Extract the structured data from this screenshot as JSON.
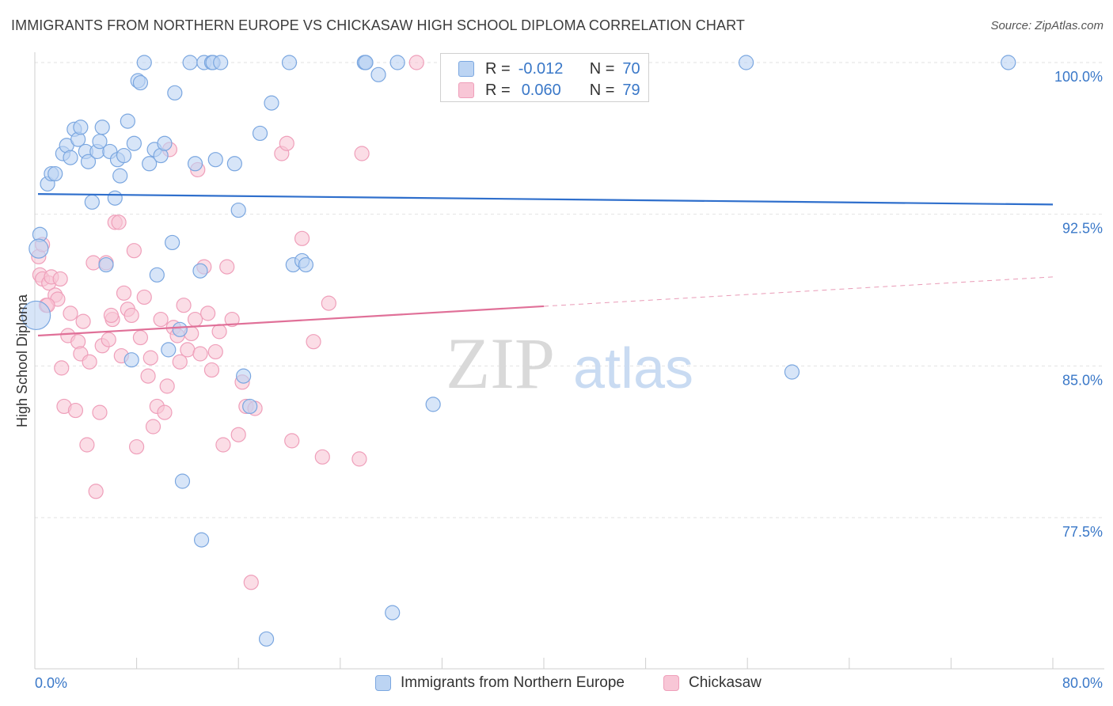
{
  "title": "IMMIGRANTS FROM NORTHERN EUROPE VS CHICKASAW HIGH SCHOOL DIPLOMA CORRELATION CHART",
  "source": "Source: ZipAtlas.com",
  "watermark": {
    "zip": "ZIP",
    "atlas": "atlas"
  },
  "stats_legend": [
    {
      "r_label": "R =",
      "r_value": "-0.012",
      "n_label": "N =",
      "n_value": "70",
      "color": "#7ba7e0"
    },
    {
      "r_label": "R =",
      "r_value": "0.060",
      "n_label": "N =",
      "n_value": "79",
      "color": "#f0a0bb"
    }
  ],
  "colors": {
    "blue_fill": "#bcd4f3",
    "blue_stroke": "#7ba7e0",
    "blue_line": "#2f6fcc",
    "pink_fill": "#f8c6d6",
    "pink_stroke": "#ef9fba",
    "pink_line": "#e07098",
    "tick_text": "#3a78c8",
    "grid": "#e2e2e2"
  },
  "chart_data": {
    "type": "scatter",
    "title": "IMMIGRANTS FROM NORTHERN EUROPE VS CHICKASAW HIGH SCHOOL DIPLOMA CORRELATION CHART",
    "xlabel": "",
    "ylabel": "High School Diploma",
    "xlim": [
      0,
      80
    ],
    "ylim": [
      71,
      101
    ],
    "x_tick_labels": [
      "0.0%",
      "80.0%"
    ],
    "y_ticks": [
      77.5,
      85.0,
      92.5,
      100.0
    ],
    "y_tick_labels": [
      "77.5%",
      "85.0%",
      "92.5%",
      "100.0%"
    ],
    "series": [
      {
        "name": "Immigrants from Northern Europe",
        "color": "#7ba7e0",
        "trend": {
          "x": [
            0,
            80
          ],
          "y": [
            93.5,
            92.98
          ],
          "solid_until": 80
        },
        "points": [
          [
            0.1,
            87.5
          ],
          [
            0.4,
            91.5
          ],
          [
            1.0,
            94.0
          ],
          [
            1.3,
            94.5
          ],
          [
            1.6,
            94.5
          ],
          [
            2.2,
            95.5
          ],
          [
            2.5,
            95.9
          ],
          [
            2.8,
            95.3
          ],
          [
            3.1,
            96.7
          ],
          [
            3.4,
            96.2
          ],
          [
            3.6,
            96.8
          ],
          [
            4.0,
            95.6
          ],
          [
            4.2,
            95.1
          ],
          [
            4.5,
            93.1
          ],
          [
            4.9,
            95.6
          ],
          [
            5.1,
            96.1
          ],
          [
            5.3,
            96.8
          ],
          [
            5.6,
            90.0
          ],
          [
            5.9,
            95.6
          ],
          [
            6.3,
            93.3
          ],
          [
            6.5,
            95.2
          ],
          [
            6.7,
            94.4
          ],
          [
            7.0,
            95.4
          ],
          [
            7.3,
            97.1
          ],
          [
            7.6,
            85.3
          ],
          [
            7.8,
            96.0
          ],
          [
            8.1,
            99.1
          ],
          [
            8.3,
            99.0
          ],
          [
            8.6,
            100.0
          ],
          [
            9.0,
            95.0
          ],
          [
            9.4,
            95.7
          ],
          [
            9.6,
            89.5
          ],
          [
            9.9,
            95.4
          ],
          [
            10.2,
            96.0
          ],
          [
            10.5,
            85.8
          ],
          [
            10.8,
            91.1
          ],
          [
            11.0,
            98.5
          ],
          [
            11.4,
            86.8
          ],
          [
            11.6,
            79.3
          ],
          [
            12.2,
            100.0
          ],
          [
            12.6,
            95.0
          ],
          [
            13.0,
            89.7
          ],
          [
            13.1,
            76.4
          ],
          [
            13.3,
            100.0
          ],
          [
            13.9,
            100.0
          ],
          [
            14.0,
            100.0
          ],
          [
            14.2,
            95.2
          ],
          [
            14.6,
            100.0
          ],
          [
            15.7,
            95.0
          ],
          [
            16.0,
            92.7
          ],
          [
            16.4,
            84.5
          ],
          [
            16.9,
            83.0
          ],
          [
            17.7,
            96.5
          ],
          [
            18.2,
            71.5
          ],
          [
            18.6,
            98.0
          ],
          [
            20.0,
            100.0
          ],
          [
            20.3,
            90.0
          ],
          [
            21.0,
            90.2
          ],
          [
            21.3,
            90.0
          ],
          [
            25.9,
            100.0
          ],
          [
            26.0,
            100.0
          ],
          [
            27.0,
            99.4
          ],
          [
            28.1,
            72.8
          ],
          [
            28.5,
            100.0
          ],
          [
            31.3,
            83.1
          ],
          [
            55.9,
            100.0
          ],
          [
            59.5,
            84.7
          ],
          [
            76.5,
            100.0
          ],
          [
            0.3,
            90.8
          ],
          [
            26.0,
            100.0
          ]
        ]
      },
      {
        "name": "Chickasaw",
        "color": "#f0a0bb",
        "trend": {
          "x": [
            0,
            80
          ],
          "y": [
            86.5,
            89.4
          ],
          "solid_until": 40
        },
        "points": [
          [
            0.3,
            90.4
          ],
          [
            0.4,
            89.5
          ],
          [
            0.6,
            89.3
          ],
          [
            0.9,
            88.0
          ],
          [
            1.1,
            89.1
          ],
          [
            1.3,
            89.4
          ],
          [
            1.6,
            88.5
          ],
          [
            1.8,
            88.3
          ],
          [
            2.0,
            89.3
          ],
          [
            2.1,
            84.9
          ],
          [
            2.3,
            83.0
          ],
          [
            2.6,
            86.5
          ],
          [
            2.8,
            87.6
          ],
          [
            3.2,
            82.8
          ],
          [
            3.4,
            86.2
          ],
          [
            3.6,
            85.6
          ],
          [
            3.8,
            87.2
          ],
          [
            4.1,
            81.1
          ],
          [
            4.3,
            85.2
          ],
          [
            4.6,
            90.1
          ],
          [
            4.8,
            78.8
          ],
          [
            5.1,
            82.7
          ],
          [
            5.3,
            86.0
          ],
          [
            5.6,
            90.1
          ],
          [
            5.8,
            86.3
          ],
          [
            6.1,
            87.3
          ],
          [
            6.3,
            92.1
          ],
          [
            6.6,
            92.1
          ],
          [
            6.8,
            85.5
          ],
          [
            7.0,
            88.6
          ],
          [
            7.3,
            87.8
          ],
          [
            7.6,
            87.5
          ],
          [
            7.8,
            90.7
          ],
          [
            8.0,
            81.0
          ],
          [
            8.3,
            86.4
          ],
          [
            8.6,
            88.4
          ],
          [
            8.9,
            84.5
          ],
          [
            9.1,
            85.4
          ],
          [
            9.3,
            82.0
          ],
          [
            9.6,
            83.0
          ],
          [
            9.9,
            87.3
          ],
          [
            10.2,
            82.7
          ],
          [
            10.4,
            84.0
          ],
          [
            10.6,
            95.7
          ],
          [
            10.9,
            86.9
          ],
          [
            11.2,
            86.5
          ],
          [
            11.4,
            85.2
          ],
          [
            11.7,
            88.0
          ],
          [
            12.0,
            85.8
          ],
          [
            12.3,
            86.6
          ],
          [
            12.6,
            87.3
          ],
          [
            12.8,
            94.7
          ],
          [
            13.0,
            85.6
          ],
          [
            13.3,
            89.9
          ],
          [
            13.6,
            87.6
          ],
          [
            13.9,
            84.8
          ],
          [
            14.2,
            85.7
          ],
          [
            14.5,
            86.7
          ],
          [
            14.8,
            81.1
          ],
          [
            15.1,
            89.9
          ],
          [
            15.5,
            87.3
          ],
          [
            16.0,
            81.6
          ],
          [
            16.3,
            84.2
          ],
          [
            16.6,
            83.0
          ],
          [
            17.0,
            74.3
          ],
          [
            17.3,
            82.9
          ],
          [
            19.4,
            95.5
          ],
          [
            19.8,
            96.0
          ],
          [
            20.2,
            81.3
          ],
          [
            21.0,
            91.3
          ],
          [
            21.9,
            86.2
          ],
          [
            22.6,
            80.5
          ],
          [
            23.1,
            88.1
          ],
          [
            25.5,
            80.4
          ],
          [
            25.7,
            95.5
          ],
          [
            30.0,
            100.0
          ],
          [
            0.6,
            91.0
          ],
          [
            1.0,
            88.0
          ],
          [
            6.0,
            87.5
          ]
        ]
      }
    ],
    "legend": [
      "Immigrants from Northern Europe",
      "Chickasaw"
    ]
  },
  "axis": {
    "x_left": "0.0%",
    "x_right": "80.0%",
    "ylabel": "High School Diploma"
  }
}
